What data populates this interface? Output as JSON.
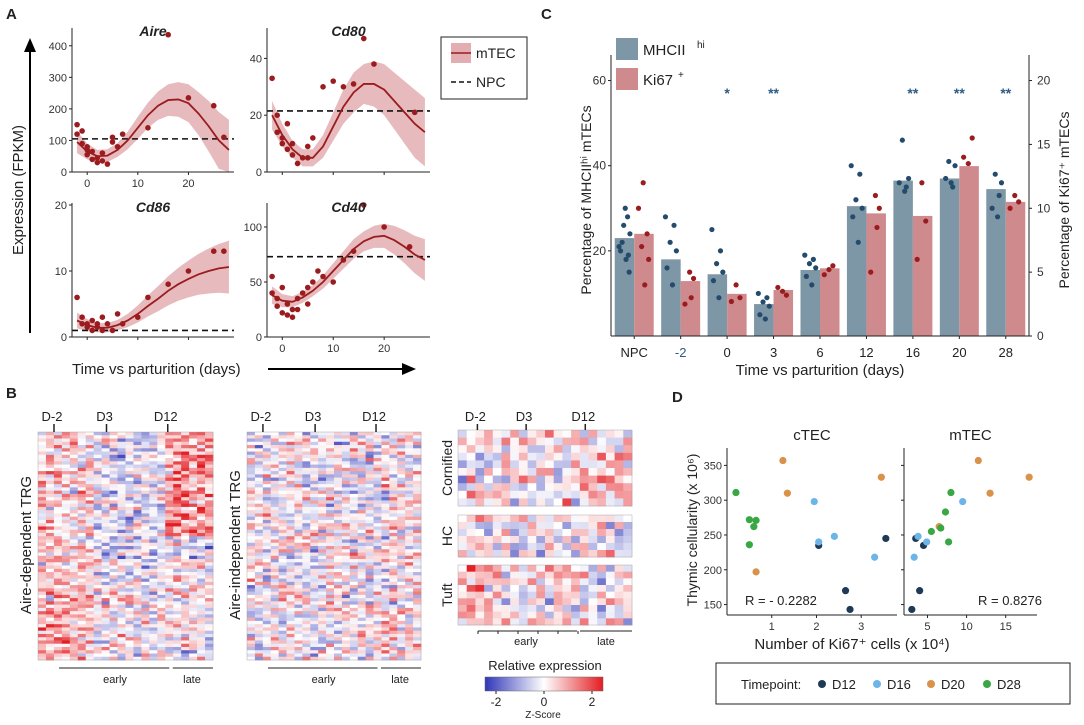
{
  "colors": {
    "mtec_line": "#9b1c1f",
    "mtec_band": "#e3aeb1",
    "mhc_bar": "#7e97a6",
    "ki_bar": "#cf8a8e",
    "mhc_dot": "#244b6b",
    "ki_dot": "#9b1c1f",
    "heat_neg": "#3036b8",
    "heat_pos": "#e41d22",
    "d12": "#1f3a56",
    "d16": "#6db4e8",
    "d20": "#d9924a",
    "d28": "#3aa745",
    "star": "#2f5a82"
  },
  "panels": {
    "a": {
      "letter": "A",
      "ylabel": "Expression (FPKM)",
      "xlabel": "Time vs parturition (days)",
      "legend": {
        "mtec": "mTEC",
        "npc": "NPC"
      }
    },
    "b": {
      "letter": "B",
      "heatmaps": [
        {
          "ylabel": "Aire-dependent TRG",
          "days": [
            "D-2",
            "D3",
            "D12"
          ],
          "groups": [
            "early",
            "late"
          ]
        },
        {
          "ylabel": "Aire-independent TRG",
          "days": [
            "D-2",
            "D3",
            "D12"
          ],
          "groups": [
            "early",
            "late"
          ]
        }
      ],
      "right": {
        "days": [
          "D-2",
          "D3",
          "D12"
        ],
        "blocks": [
          "Cornified",
          "HC",
          "Tuft"
        ],
        "groups": [
          "early",
          "late"
        ]
      },
      "colorbar": {
        "title": "Relative expression",
        "ticks": [
          "-2",
          "0",
          "2"
        ],
        "label": "Z-Score"
      }
    },
    "c": {
      "letter": "C"
    },
    "d": {
      "letter": "D"
    }
  },
  "chart_data": [
    {
      "panel": "A",
      "type": "scatter",
      "title": "Aire",
      "xlabel": "Time vs parturition (days)",
      "ylabel": "Expression (FPKM)",
      "xlim": [
        -3,
        29
      ],
      "ylim": [
        0,
        450
      ],
      "xticks": [
        "0",
        "10",
        "20"
      ],
      "yticks": [
        "0",
        "100",
        "200",
        "300",
        "400"
      ],
      "npc": 105,
      "fit": {
        "x": [
          -2,
          0,
          2,
          4,
          6,
          8,
          10,
          12,
          14,
          16,
          18,
          20,
          22,
          24,
          26,
          28
        ],
        "y": [
          95,
          65,
          50,
          52,
          70,
          100,
          140,
          180,
          210,
          228,
          230,
          218,
          185,
          145,
          100,
          70
        ]
      },
      "band_half_width": [
        35,
        25,
        20,
        20,
        22,
        28,
        35,
        40,
        45,
        50,
        55,
        60,
        68,
        80,
        90,
        95
      ],
      "points": {
        "x": [
          -2,
          -2,
          -1,
          -1,
          0,
          0,
          0,
          1,
          1,
          2,
          2,
          3,
          3,
          4,
          5,
          5,
          6,
          7,
          12,
          16,
          20,
          25,
          27
        ],
        "y": [
          150,
          120,
          130,
          90,
          80,
          70,
          55,
          40,
          65,
          30,
          45,
          35,
          60,
          25,
          95,
          110,
          80,
          120,
          140,
          435,
          235,
          210,
          110
        ]
      }
    },
    {
      "panel": "A",
      "type": "scatter",
      "title": "Cd80",
      "xlim": [
        -3,
        29
      ],
      "ylim": [
        0,
        50
      ],
      "xticks": [],
      "yticks": [
        "0",
        "20",
        "40"
      ],
      "npc": 21.5,
      "fit": {
        "x": [
          -2,
          0,
          2,
          4,
          6,
          8,
          10,
          12,
          14,
          16,
          18,
          20,
          22,
          24,
          26,
          28
        ],
        "y": [
          20,
          13,
          8,
          5,
          5,
          9,
          16,
          23,
          28,
          31,
          31,
          29,
          25,
          21,
          17,
          14
        ]
      },
      "band_half_width": [
        5,
        4,
        3,
        3,
        3,
        4,
        5,
        6,
        7,
        7,
        8,
        9,
        10,
        11,
        12,
        12
      ],
      "points": {
        "x": [
          -2,
          -1,
          -1,
          0,
          0,
          1,
          1,
          2,
          2,
          3,
          4,
          5,
          5,
          6,
          8,
          10,
          12,
          14,
          16,
          18,
          26
        ],
        "y": [
          33,
          20,
          14,
          12,
          10,
          8,
          17,
          6,
          10,
          3,
          5,
          9,
          5,
          12,
          30,
          32,
          30,
          31,
          47,
          38,
          21
        ]
      }
    },
    {
      "panel": "A",
      "type": "scatter",
      "title": "Cd86",
      "xlim": [
        -3,
        29
      ],
      "ylim": [
        0,
        20
      ],
      "xticks": [],
      "yticks": [
        "0",
        "10",
        "20"
      ],
      "npc": 1,
      "fit": {
        "x": [
          -2,
          0,
          2,
          4,
          6,
          8,
          10,
          12,
          14,
          16,
          18,
          20,
          22,
          24,
          26,
          28
        ],
        "y": [
          2.5,
          1.8,
          1.4,
          1.4,
          1.8,
          2.5,
          3.5,
          4.7,
          5.8,
          7,
          8,
          8.8,
          9.5,
          10,
          10.4,
          10.6
        ]
      },
      "band_half_width": [
        1.2,
        0.9,
        0.7,
        0.7,
        0.8,
        1,
        1.3,
        1.6,
        1.9,
        2.2,
        2.5,
        2.8,
        3.1,
        3.4,
        3.7,
        4
      ]
    },
    {
      "panel": "A",
      "type": "scatter",
      "title": "Cd40",
      "xlim": [
        -3,
        29
      ],
      "ylim": [
        0,
        120
      ],
      "xticks": [
        "0",
        "10",
        "20"
      ],
      "yticks": [
        "0",
        "50",
        "100"
      ],
      "npc": 73,
      "fit": {
        "x": [
          -2,
          0,
          2,
          4,
          6,
          8,
          10,
          12,
          14,
          16,
          18,
          20,
          22,
          24,
          26,
          28
        ],
        "y": [
          38,
          33,
          32,
          36,
          42,
          50,
          60,
          70,
          80,
          87,
          91,
          92,
          88,
          82,
          75,
          70
        ]
      },
      "band_half_width": [
        8,
        6,
        5,
        5,
        5,
        6,
        7,
        8,
        9,
        9,
        10,
        11,
        13,
        15,
        17,
        19
      ],
      "points": {
        "x": [
          -2,
          -2,
          -1,
          -1,
          0,
          0,
          1,
          1,
          2,
          2,
          3,
          3,
          4,
          5,
          5,
          6,
          7,
          8,
          10,
          12,
          14,
          16,
          20,
          25
        ],
        "y": [
          55,
          40,
          35,
          28,
          45,
          22,
          30,
          20,
          25,
          18,
          35,
          25,
          40,
          45,
          30,
          50,
          60,
          55,
          50,
          70,
          78,
          120,
          100,
          82
        ]
      }
    },
    {
      "panel": "C",
      "type": "bar",
      "xlabel": "Time vs parturition (days)",
      "ylabel": "Percentage of MHCIIʰⁱ mTECs",
      "ylabel_right": "Percentage of  Ki67⁺ mTECs",
      "categories": [
        "NPC",
        "-2",
        "0",
        "3",
        "6",
        "12",
        "16",
        "20",
        "28"
      ],
      "ylim": [
        0,
        66
      ],
      "yticks": [
        "20",
        "40",
        "60"
      ],
      "ylim_right": [
        0,
        22
      ],
      "yticks_right": [
        "0",
        "5",
        "10",
        "15",
        "20"
      ],
      "series": [
        {
          "name": "MHCIIʰⁱ",
          "values": [
            23,
            18,
            14.5,
            7.5,
            15.5,
            30.5,
            36.5,
            37,
            34.5
          ]
        },
        {
          "name": "Ki67⁺",
          "values_right": [
            8,
            4.3,
            3.3,
            3.6,
            5.3,
            9.6,
            9.4,
            13.3,
            10.5
          ]
        }
      ],
      "significance": [
        "",
        "",
        "*",
        "**",
        "",
        "",
        "**",
        "**",
        "**"
      ],
      "points_mhc": [
        [
          18,
          20,
          24,
          26,
          28,
          21,
          30,
          15,
          22,
          19
        ],
        [
          12,
          16,
          20,
          22,
          26,
          28
        ],
        [
          9,
          13,
          15,
          17,
          20,
          25
        ],
        [
          4,
          5,
          7,
          8,
          9,
          10
        ],
        [
          12,
          14,
          16,
          17,
          18,
          19
        ],
        [
          22,
          28,
          30,
          32,
          38,
          40
        ],
        [
          34,
          36,
          37,
          46,
          35
        ],
        [
          36,
          37,
          40,
          41,
          35
        ],
        [
          28,
          30,
          36,
          38,
          33
        ]
      ],
      "points_ki": [
        [
          12,
          8,
          10,
          4,
          6,
          7
        ],
        [
          5,
          4.5,
          2.5,
          3
        ],
        [
          4,
          3,
          2.7
        ],
        [
          3.5,
          3.2,
          3.8
        ],
        [
          5.2,
          5.5,
          4.8
        ],
        [
          11,
          10,
          5,
          8.5
        ],
        [
          12,
          9,
          6
        ],
        [
          13.5,
          15.5,
          14
        ],
        [
          11,
          10.5,
          10
        ]
      ]
    },
    {
      "panel": "D",
      "type": "scatter",
      "title": "cTEC",
      "xlabel": "Number of Ki67⁺ cells (x 10⁴)",
      "ylabel": "Thymic cellularity (x 10⁶)",
      "xlim": [
        0,
        3.8
      ],
      "xticks": [
        "1",
        "2",
        "3"
      ],
      "ylim": [
        135,
        375
      ],
      "yticks": [
        "150",
        "200",
        "250",
        "300",
        "350"
      ],
      "annotation": "R = - 0.2282",
      "series": [
        {
          "name": "D12",
          "x": [
            2.05,
            2.65,
            2.75,
            3.55
          ],
          "y": [
            235,
            170,
            143,
            245
          ]
        },
        {
          "name": "D16",
          "x": [
            1.95,
            2.4,
            2.05,
            3.3
          ],
          "y": [
            298,
            248,
            240,
            218
          ]
        },
        {
          "name": "D20",
          "x": [
            1.25,
            1.35,
            0.65,
            3.45
          ],
          "y": [
            357,
            310,
            197,
            333
          ]
        },
        {
          "name": "D28",
          "x": [
            0.2,
            0.5,
            0.6,
            0.65,
            0.5
          ],
          "y": [
            311,
            272,
            262,
            271,
            236
          ]
        }
      ]
    },
    {
      "panel": "D",
      "type": "scatter",
      "title": "mTEC",
      "xlim": [
        2,
        19
      ],
      "xticks": [
        "5",
        "10",
        "15"
      ],
      "ylim": [
        135,
        375
      ],
      "yticks": [],
      "annotation": "R = 0.8276",
      "series": [
        {
          "name": "D12",
          "x": [
            3,
            4,
            4.5,
            3.5
          ],
          "y": [
            143,
            170,
            235,
            245
          ]
        },
        {
          "name": "D16",
          "x": [
            3.3,
            4.9,
            3.8,
            9.5
          ],
          "y": [
            218,
            240,
            248,
            298
          ]
        },
        {
          "name": "D20",
          "x": [
            11.5,
            13,
            18,
            6.5
          ],
          "y": [
            357,
            310,
            333,
            262
          ]
        },
        {
          "name": "D28",
          "x": [
            5.5,
            6.7,
            7.7,
            8,
            7.3
          ],
          "y": [
            255,
            260,
            240,
            311,
            283
          ]
        }
      ]
    }
  ],
  "legend_c": {
    "mhc": "MHCII",
    "mhc_sup": "hi",
    "ki": "Ki67",
    "ki_sup": "+"
  },
  "legend_d": {
    "title": "Timepoint:",
    "items": [
      "D12",
      "D16",
      "D20",
      "D28"
    ]
  }
}
